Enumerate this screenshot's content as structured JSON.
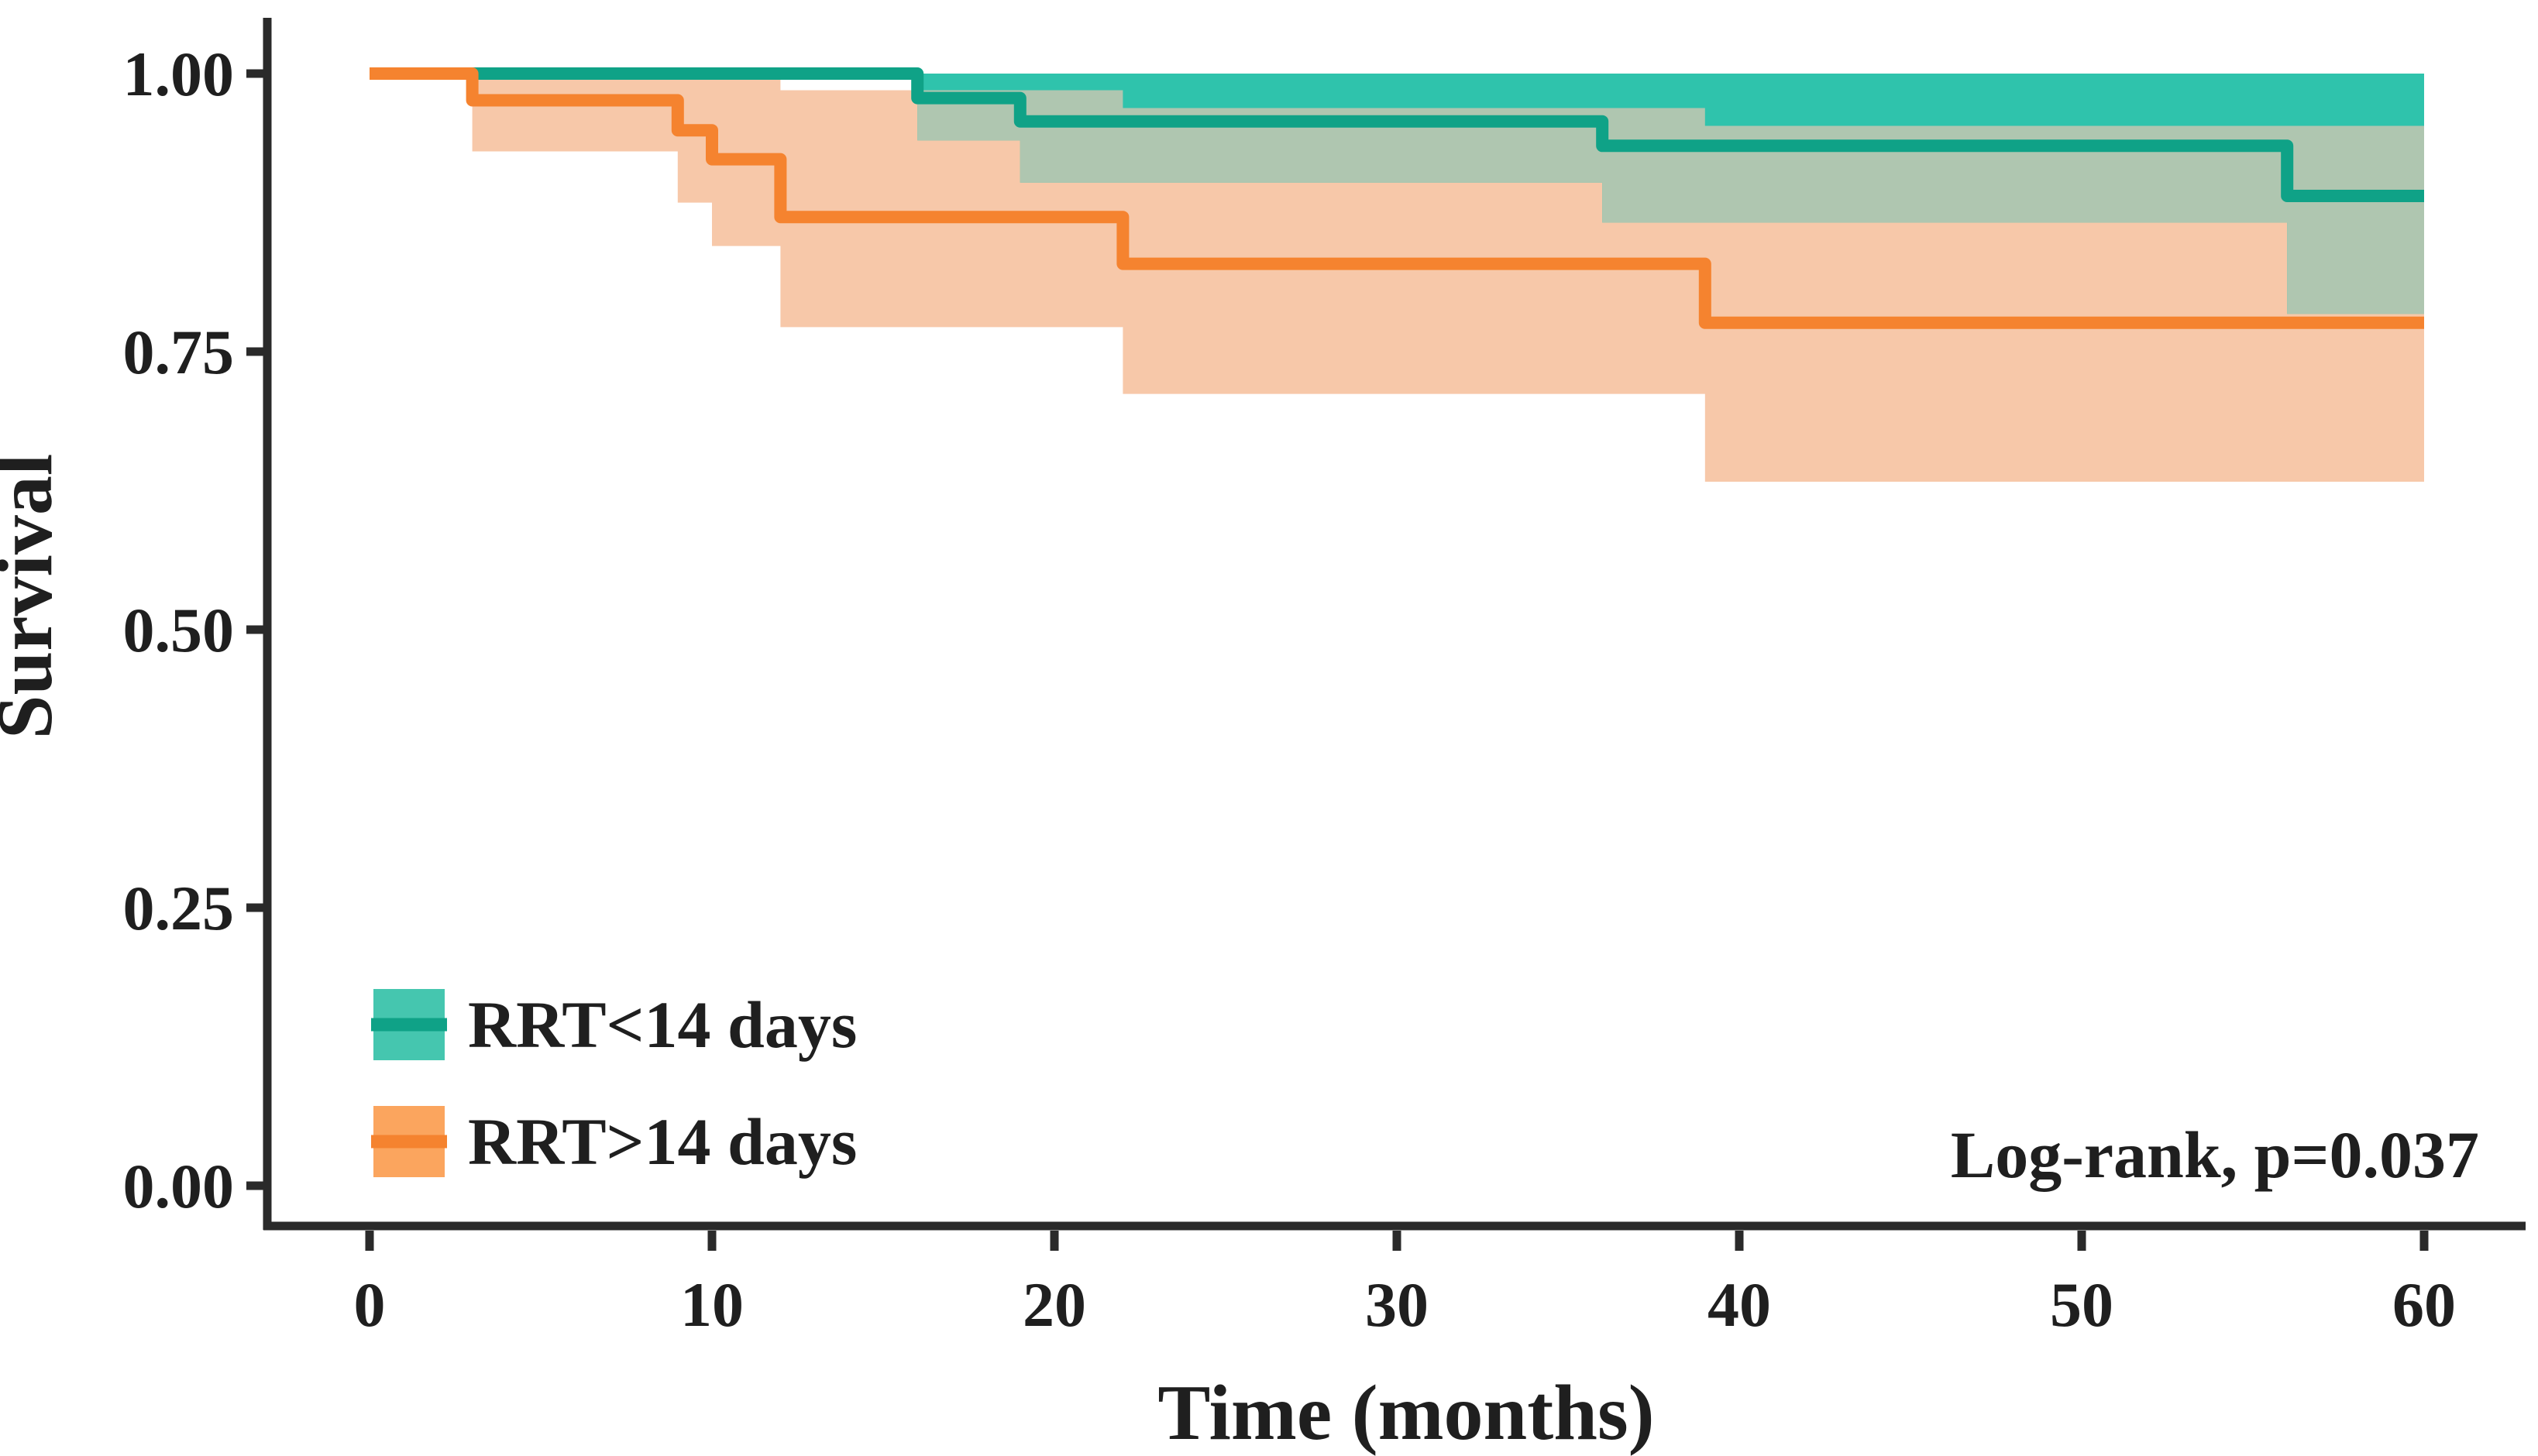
{
  "chart_data": {
    "type": "line",
    "subtype": "kaplan-meier-step-curves-with-confidence-bands",
    "title": "",
    "xlabel": "Time (months)",
    "ylabel": "Survival",
    "xlim": [
      0,
      60
    ],
    "ylim": [
      0.0,
      1.0
    ],
    "grid": false,
    "xticks": [
      {
        "value": 0,
        "label": "0"
      },
      {
        "value": 10,
        "label": "10"
      },
      {
        "value": 20,
        "label": "20"
      },
      {
        "value": 30,
        "label": "30"
      },
      {
        "value": 40,
        "label": "40"
      },
      {
        "value": 50,
        "label": "50"
      },
      {
        "value": 60,
        "label": "60"
      }
    ],
    "yticks": [
      {
        "value": 1.0,
        "label": "1.00"
      },
      {
        "value": 0.75,
        "label": "0.75"
      },
      {
        "value": 0.5,
        "label": "0.50"
      },
      {
        "value": 0.25,
        "label": "0.25"
      },
      {
        "value": 0.0,
        "label": "0.00"
      }
    ],
    "annotation": {
      "text": "Log-rank, p=0.037",
      "position": "bottom-right"
    },
    "legend_position": "inside-bottom-left",
    "band_overlap_color": "#AFC6B0",
    "series": [
      {
        "name": "RRT<14 days",
        "line_color": "#0FA287",
        "band_color": "#2FC3AC",
        "legend_fill": "#45C6AF",
        "t_end": 60,
        "steps": [
          [
            0,
            1.0
          ],
          [
            16,
            0.978
          ],
          [
            19,
            0.957
          ],
          [
            36,
            0.935
          ],
          [
            56,
            0.89
          ]
        ],
        "ci_start": 16,
        "ci_upper": [
          [
            16,
            1.0
          ]
        ],
        "ci_lower": [
          [
            16,
            0.94
          ],
          [
            19,
            0.902
          ],
          [
            36,
            0.866
          ],
          [
            56,
            0.784
          ]
        ]
      },
      {
        "name": "RRT>14 days",
        "line_color": "#F5832F",
        "band_color": "#F7C8A9",
        "legend_fill": "#FBA55E",
        "t_end": 60,
        "steps": [
          [
            0,
            1.0
          ],
          [
            3,
            0.976
          ],
          [
            9,
            0.949
          ],
          [
            10,
            0.923
          ],
          [
            12,
            0.871
          ],
          [
            22,
            0.829
          ],
          [
            39,
            0.776
          ]
        ],
        "ci_start": 3,
        "ci_upper": [
          [
            3,
            0.998
          ],
          [
            12,
            0.985
          ],
          [
            22,
            0.969
          ],
          [
            39,
            0.953
          ]
        ],
        "ci_lower": [
          [
            3,
            0.93
          ],
          [
            9,
            0.884
          ],
          [
            10,
            0.845
          ],
          [
            12,
            0.772
          ],
          [
            22,
            0.712
          ],
          [
            39,
            0.633
          ]
        ]
      }
    ]
  }
}
